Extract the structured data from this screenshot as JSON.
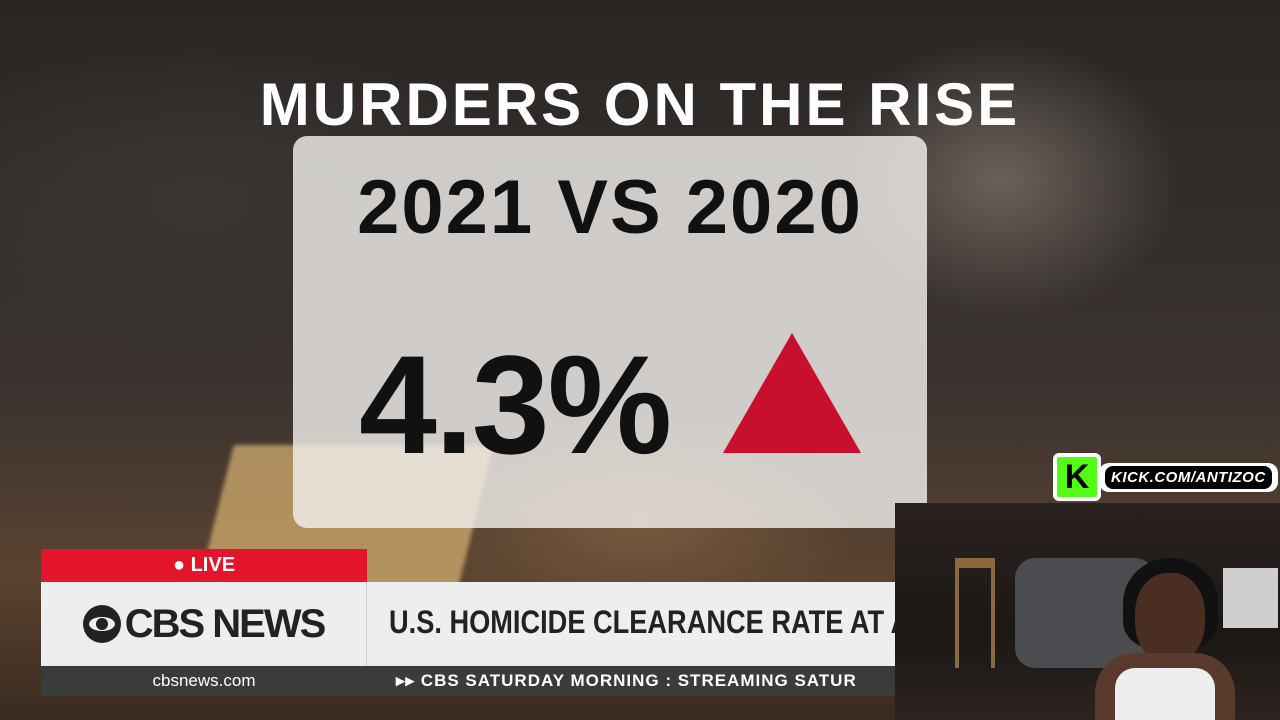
{
  "graphic": {
    "title": "MURDERS ON THE RISE",
    "comparison": "2021 VS 2020",
    "change": "4.3%",
    "trend_icon": "up-triangle-icon",
    "trend_color": "#c8102e"
  },
  "lower_third": {
    "live_label": "LIVE",
    "logo": "CBS NEWS",
    "headline": "U.S. HOMICIDE CLEARANCE RATE AT A",
    "website": "cbsnews.com",
    "ticker": "CBS SATURDAY MORNING : STREAMING SATUR",
    "ticker_icon": "fast-forward-icon",
    "live_color": "#e3142b"
  },
  "stream_overlay": {
    "kick_logo": "K",
    "kick_url": "KICK.COM/ANTIZOC",
    "kick_color": "#53fc18"
  }
}
